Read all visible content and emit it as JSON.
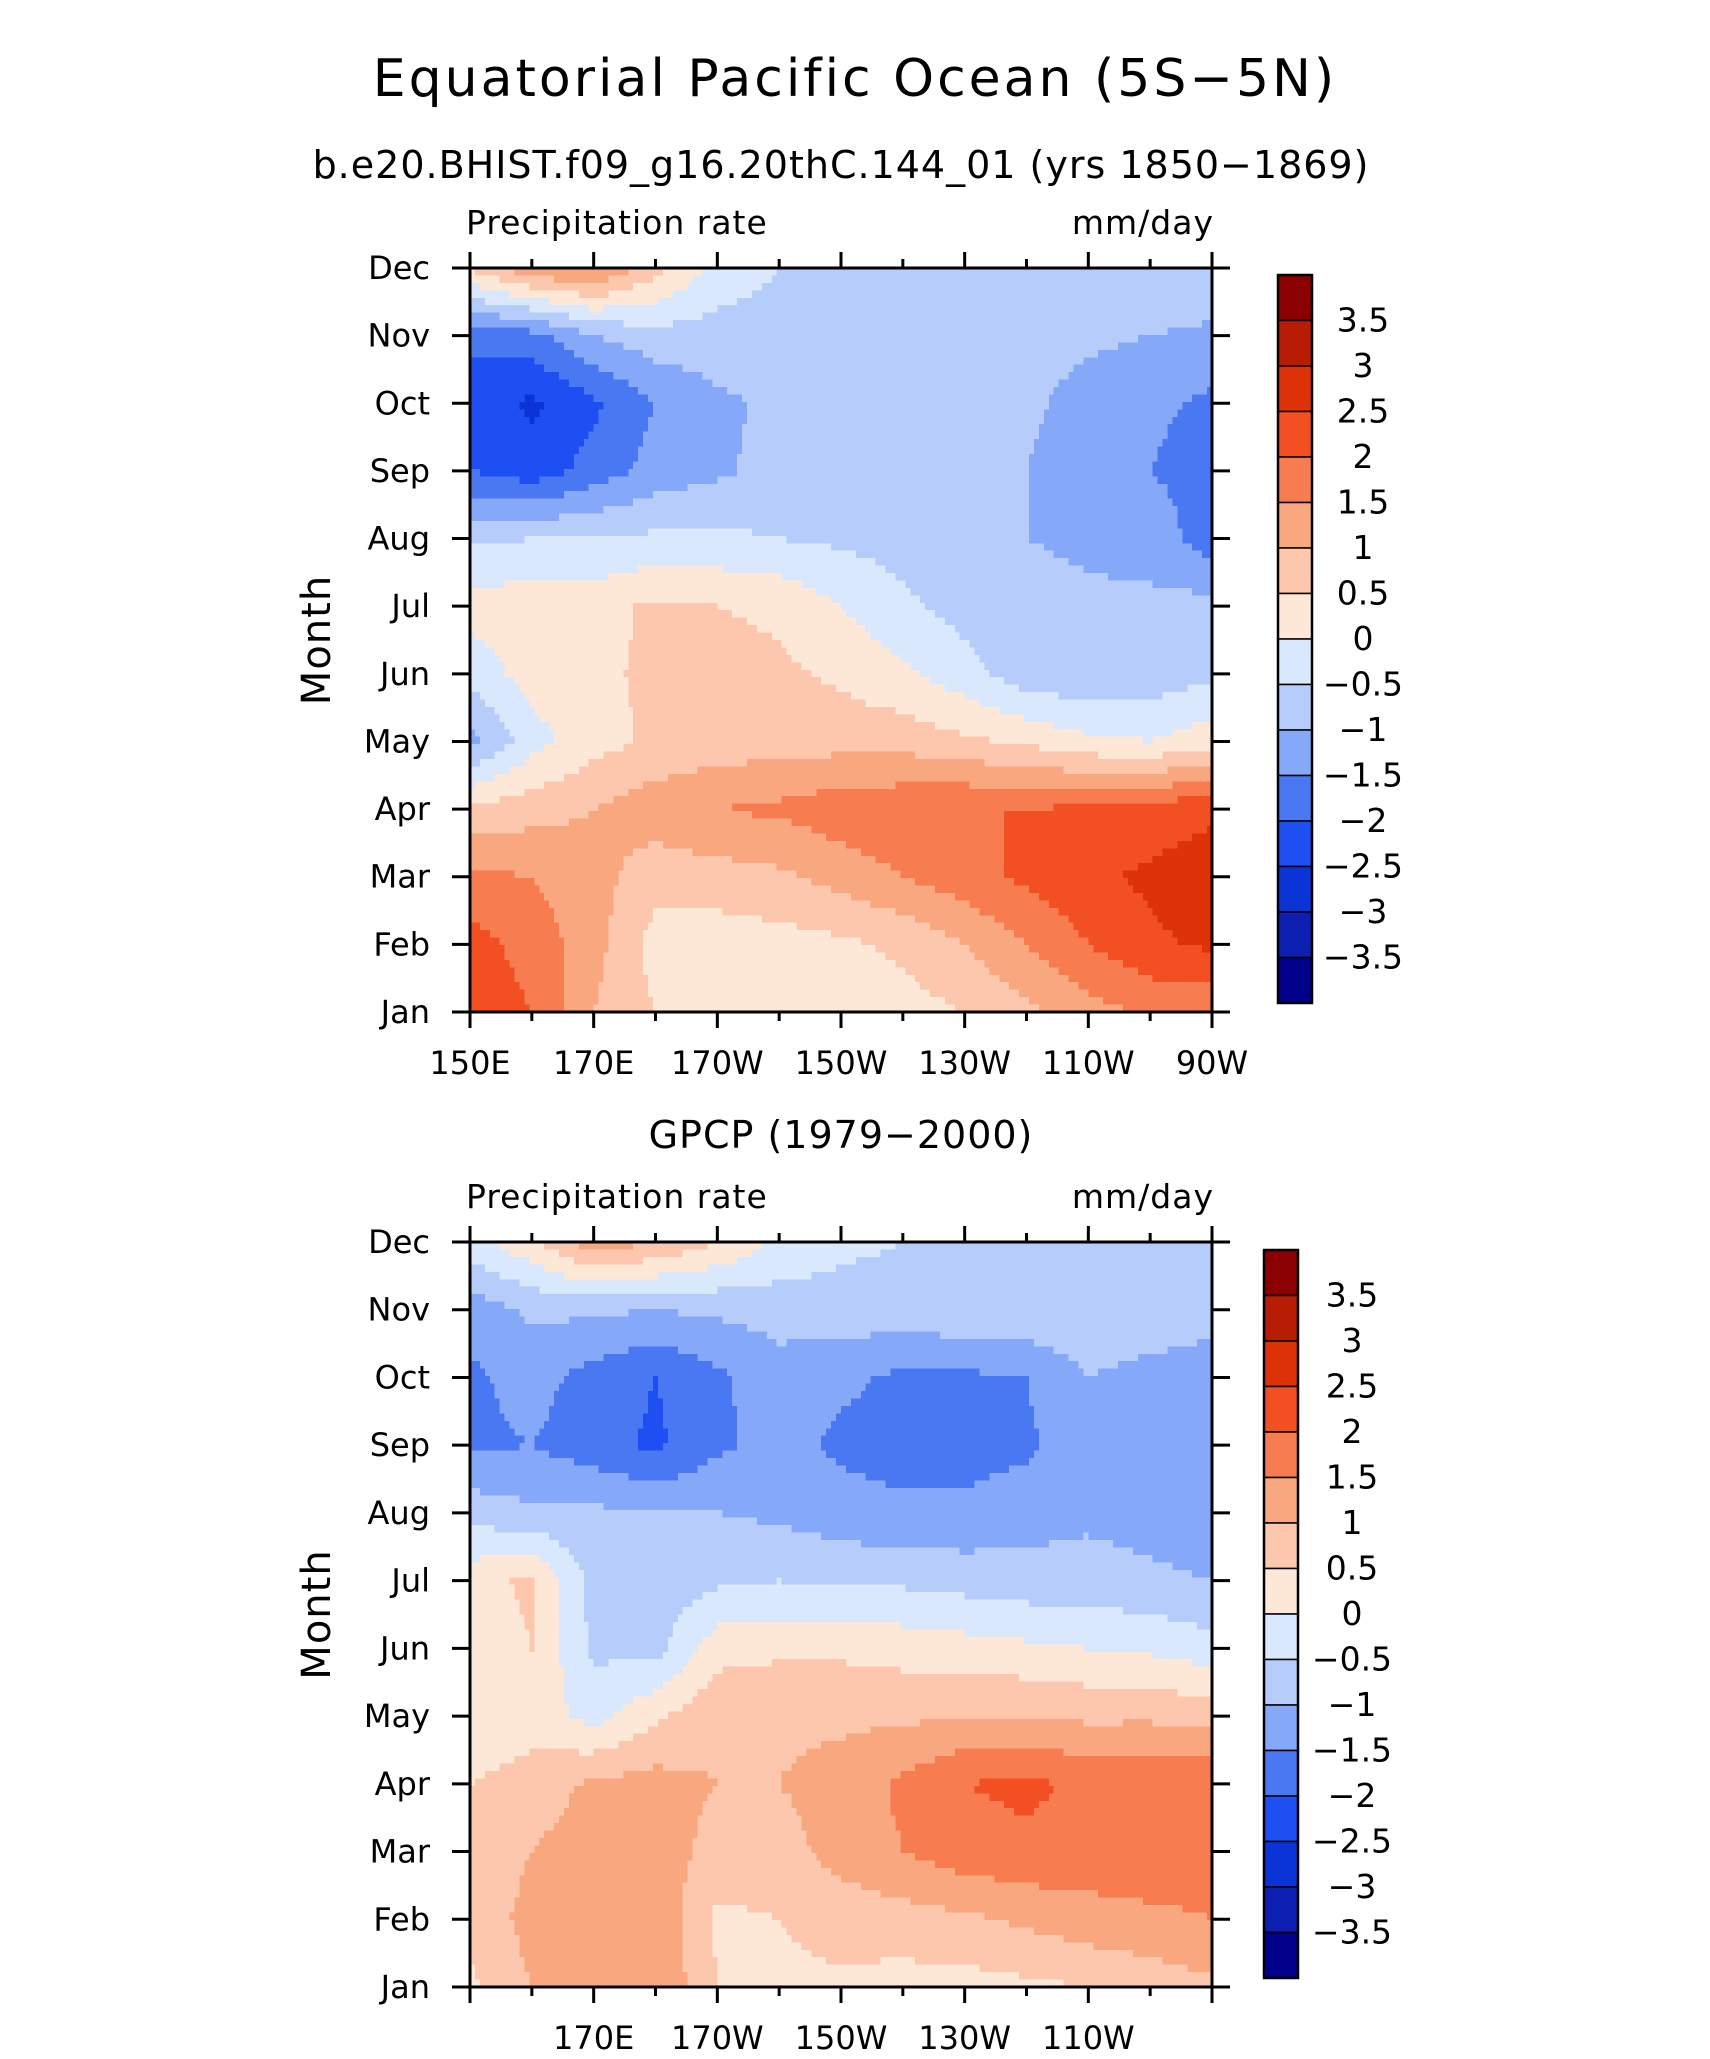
{
  "figure": {
    "title": "Equatorial Pacific Ocean (5S−5N)"
  },
  "colorbar": {
    "levels": [
      -3.5,
      -3,
      -2.5,
      -2,
      -1.5,
      -1,
      -0.5,
      0,
      0.5,
      1,
      1.5,
      2,
      2.5,
      3,
      3.5
    ],
    "labels": [
      "3.5",
      "3",
      "2.5",
      "2",
      "1.5",
      "1",
      "0.5",
      "0",
      "−0.5",
      "−1",
      "−1.5",
      "−2",
      "−2.5",
      "−3",
      "−3.5"
    ],
    "colors": [
      "#00008b",
      "#0c1fb0",
      "#0a34d6",
      "#1e4ff2",
      "#4a78f2",
      "#85a9f8",
      "#b6cdfb",
      "#d9e8fd",
      "#fde8d8",
      "#fcc7ac",
      "#f9a77e",
      "#f77c50",
      "#f24f22",
      "#de3209",
      "#b71c04",
      "#8b0000"
    ]
  },
  "chart_data": [
    {
      "type": "heatmap",
      "title": "b.e20.BHIST.f09_g16.20thC.144_01 (yrs 1850−1869)",
      "left_string": "Precipitation rate",
      "right_string": "mm/day",
      "xlabel": "",
      "ylabel": "Month",
      "xlim": [
        150,
        270
      ],
      "x_tick_values": [
        150,
        170,
        190,
        210,
        230,
        250,
        270
      ],
      "x_tick_labels": [
        "150E",
        "170E",
        "170W",
        "150W",
        "130W",
        "110W",
        "90W"
      ],
      "y_categories": [
        "Jan",
        "Feb",
        "Mar",
        "Apr",
        "May",
        "Jun",
        "Jul",
        "Aug",
        "Sep",
        "Oct",
        "Nov",
        "Dec"
      ],
      "x": [
        150,
        160,
        170,
        180,
        190,
        200,
        210,
        220,
        230,
        240,
        250,
        260,
        270
      ],
      "values": [
        [
          2.4,
          2.0,
          1.0,
          0.5,
          0.5,
          0.2,
          0.2,
          0.3,
          0.5,
          0.9,
          1.3,
          1.6,
          1.6
        ],
        [
          2.2,
          1.8,
          1.2,
          0.3,
          0.2,
          0.3,
          0.4,
          0.6,
          1.0,
          1.5,
          2.0,
          2.4,
          2.6
        ],
        [
          1.6,
          1.5,
          1.2,
          0.7,
          0.8,
          0.9,
          1.2,
          1.5,
          1.8,
          2.1,
          2.4,
          2.6,
          2.8
        ],
        [
          0.6,
          0.8,
          1.0,
          1.3,
          1.5,
          1.6,
          1.8,
          1.9,
          2.0,
          2.0,
          2.1,
          2.2,
          2.4
        ],
        [
          -1.2,
          -0.2,
          0.3,
          0.6,
          0.7,
          0.8,
          0.8,
          0.8,
          0.6,
          0.4,
          0.1,
          0.0,
          0.3
        ],
        [
          -0.3,
          0.2,
          0.4,
          0.6,
          0.7,
          0.6,
          0.4,
          0.1,
          -0.3,
          -0.8,
          -0.9,
          -0.8,
          -0.6
        ],
        [
          0.2,
          0.3,
          0.3,
          0.6,
          0.5,
          0.4,
          0.0,
          -0.4,
          -0.7,
          -0.8,
          -0.9,
          -0.9,
          -0.8
        ],
        [
          -0.6,
          -0.5,
          -0.5,
          -0.4,
          -0.4,
          -0.5,
          -0.6,
          -0.7,
          -0.8,
          -1.0,
          -1.1,
          -1.2,
          -1.8
        ],
        [
          -2.0,
          -2.3,
          -1.8,
          -1.3,
          -1.1,
          -0.8,
          -0.7,
          -0.7,
          -0.8,
          -1.0,
          -1.3,
          -1.5,
          -1.7
        ],
        [
          -2.2,
          -2.6,
          -2.1,
          -1.5,
          -1.1,
          -0.9,
          -0.7,
          -0.6,
          -0.7,
          -0.9,
          -1.2,
          -1.4,
          -1.6
        ],
        [
          -1.9,
          -1.7,
          -1.0,
          -0.7,
          -0.7,
          -0.7,
          -0.6,
          -0.6,
          -0.7,
          -0.8,
          -0.9,
          -1.0,
          -1.1
        ],
        [
          0.6,
          1.4,
          1.6,
          0.7,
          -0.2,
          -0.5,
          -0.6,
          -0.6,
          -0.6,
          -0.6,
          -0.6,
          -0.6,
          -0.6
        ]
      ]
    },
    {
      "type": "heatmap",
      "title": "GPCP (1979−2000)",
      "left_string": "Precipitation rate",
      "right_string": "mm/day",
      "xlabel": "",
      "ylabel": "Month",
      "xlim": [
        150,
        270
      ],
      "x_tick_values": [
        170,
        190,
        210,
        230,
        250
      ],
      "x_tick_labels": [
        "170E",
        "170W",
        "150W",
        "130W",
        "110W"
      ],
      "y_categories": [
        "Jan",
        "Feb",
        "Mar",
        "Apr",
        "May",
        "Jun",
        "Jul",
        "Aug",
        "Sep",
        "Oct",
        "Nov",
        "Dec"
      ],
      "x": [
        150,
        160,
        170,
        180,
        190,
        200,
        210,
        220,
        230,
        240,
        250,
        260,
        270
      ],
      "values": [
        [
          0.4,
          1.0,
          1.2,
          1.5,
          0.5,
          0.4,
          0.4,
          0.3,
          0.3,
          0.4,
          0.5,
          0.7,
          0.9
        ],
        [
          0.6,
          1.2,
          1.3,
          1.4,
          0.4,
          0.5,
          0.7,
          0.8,
          0.9,
          1.1,
          1.3,
          1.4,
          1.5
        ],
        [
          0.6,
          1.0,
          1.3,
          1.3,
          0.8,
          0.8,
          1.2,
          1.5,
          1.8,
          1.9,
          1.8,
          1.8,
          1.7
        ],
        [
          0.5,
          0.7,
          1.1,
          1.2,
          1.0,
          1.0,
          1.2,
          1.6,
          2.0,
          2.1,
          1.9,
          2.0,
          1.9
        ],
        [
          0.1,
          0.3,
          -0.2,
          0.4,
          0.9,
          0.9,
          0.9,
          0.9,
          1.0,
          1.0,
          0.9,
          0.9,
          0.8
        ],
        [
          0.2,
          0.5,
          -0.6,
          -0.7,
          0.3,
          0.4,
          0.4,
          0.3,
          0.2,
          0.1,
          0.0,
          -0.1,
          -0.3
        ],
        [
          0.3,
          0.6,
          -0.7,
          -0.8,
          -0.6,
          -0.5,
          -0.6,
          -0.6,
          -0.7,
          -0.8,
          -0.8,
          -0.9,
          -1.0
        ],
        [
          -0.7,
          -0.9,
          -0.9,
          -1.0,
          -1.0,
          -1.1,
          -1.3,
          -1.4,
          -1.4,
          -1.2,
          -1.1,
          -1.2,
          -1.3
        ],
        [
          -1.6,
          -1.5,
          -1.8,
          -2.1,
          -1.6,
          -1.3,
          -1.6,
          -1.7,
          -1.7,
          -1.6,
          -1.1,
          -1.3,
          -1.4
        ],
        [
          -1.6,
          -1.3,
          -1.7,
          -2.0,
          -1.6,
          -1.2,
          -1.4,
          -1.6,
          -1.6,
          -1.5,
          -1.0,
          -1.2,
          -1.4
        ],
        [
          -1.3,
          -0.9,
          -0.9,
          -1.0,
          -0.9,
          -0.8,
          -0.7,
          -0.7,
          -0.6,
          -0.6,
          -0.6,
          -0.6,
          -0.7
        ],
        [
          -0.2,
          0.4,
          1.3,
          1.0,
          0.5,
          -0.1,
          -0.4,
          -0.5,
          -0.6,
          -0.6,
          -0.5,
          -0.5,
          -0.5
        ]
      ]
    }
  ]
}
